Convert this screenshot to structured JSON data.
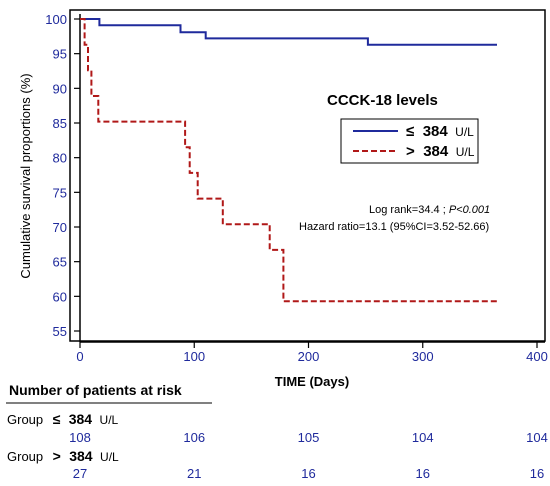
{
  "chart_data": {
    "type": "line",
    "xlabel": "TIME (Days)",
    "ylabel": "Cumulative survival proportions (%)",
    "xlim": [
      0,
      400
    ],
    "ylim": [
      53,
      100
    ],
    "x_ticks": [
      0,
      100,
      200,
      300,
      400
    ],
    "y_ticks": [
      55,
      60,
      65,
      70,
      75,
      80,
      85,
      90,
      95,
      100
    ],
    "grid": false,
    "legend": {
      "title": "CCCK-18 levels",
      "placement": "right",
      "entries": [
        {
          "symbol": "≤",
          "value": "384",
          "unit": "U/L"
        },
        {
          "symbol": ">",
          "value": "384",
          "unit": "U/L"
        }
      ]
    },
    "series": [
      {
        "color": "#1f2a9c",
        "style": "solid",
        "points": [
          [
            0,
            100
          ],
          [
            17,
            100
          ],
          [
            17,
            99.1
          ],
          [
            88,
            99.1
          ],
          [
            88,
            98.1
          ],
          [
            110,
            98.1
          ],
          [
            110,
            97.2
          ],
          [
            252,
            97.2
          ],
          [
            252,
            96.3
          ],
          [
            365,
            96.3
          ]
        ]
      },
      {
        "color": "#b01818",
        "style": "dashed",
        "points": [
          [
            0,
            100
          ],
          [
            4,
            100
          ],
          [
            4,
            96.3
          ],
          [
            7,
            96.3
          ],
          [
            7,
            92.6
          ],
          [
            10,
            92.6
          ],
          [
            10,
            88.9
          ],
          [
            16,
            88.9
          ],
          [
            16,
            85.2
          ],
          [
            92,
            85.2
          ],
          [
            92,
            81.5
          ],
          [
            96,
            81.5
          ],
          [
            96,
            77.8
          ],
          [
            103,
            77.8
          ],
          [
            103,
            74.1
          ],
          [
            125,
            74.1
          ],
          [
            125,
            70.4
          ],
          [
            166,
            70.4
          ],
          [
            166,
            66.7
          ],
          [
            178,
            66.7
          ],
          [
            178,
            59.3
          ],
          [
            365,
            59.3
          ]
        ]
      }
    ],
    "annotations": {
      "logrank_prefix": "Log rank=34.4 ; ",
      "p_value": "P<0.001",
      "hazard": "Hazard ratio=13.1 (95%CI=3.52-52.66)"
    },
    "risk_table": {
      "title": "Number of patients at risk",
      "rows": [
        {
          "prefix": "Group",
          "symbol": "≤",
          "value": "384",
          "unit": "U/L",
          "counts": [
            "108",
            "106",
            "105",
            "104",
            "104"
          ]
        },
        {
          "prefix": "Group",
          "symbol": ">",
          "value": "384",
          "unit": "U/L",
          "counts": [
            "27",
            "21",
            "16",
            "16",
            "16"
          ]
        }
      ]
    }
  }
}
